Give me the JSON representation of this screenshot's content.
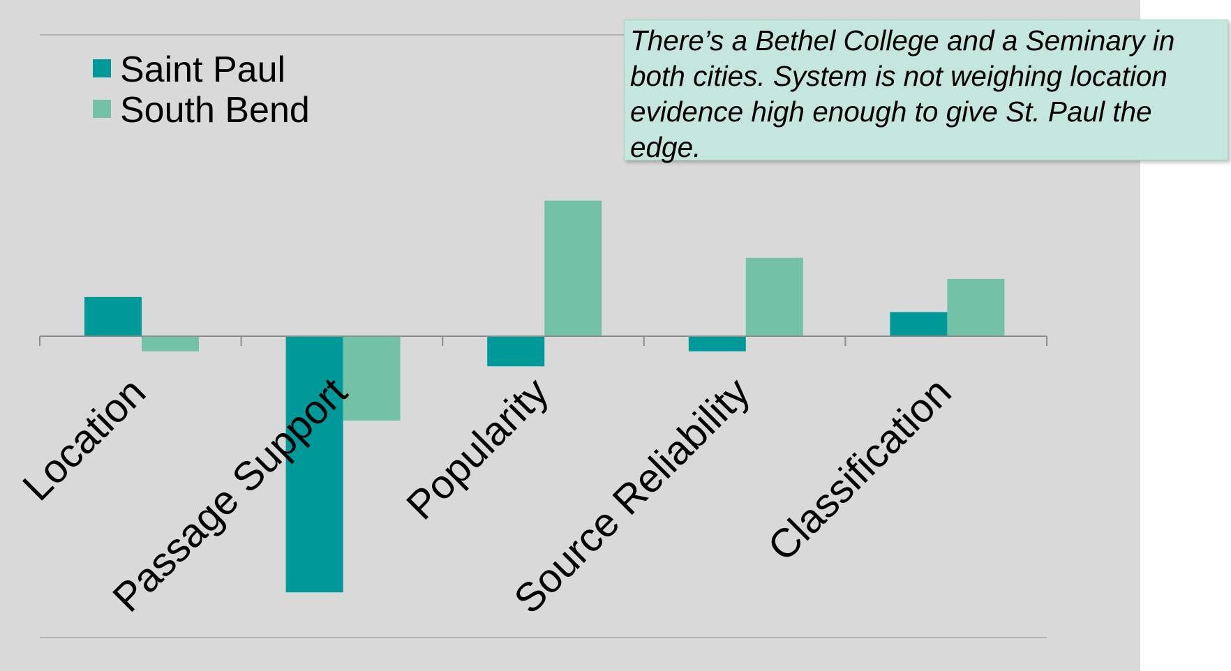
{
  "colors": {
    "background": "#d9d9d9",
    "gridline": "#a6a6a6",
    "saint_paul": "#009999",
    "south_bend": "#73c2a8",
    "note_bg": "#c5e6dd"
  },
  "note": {
    "text": "There’s a Bethel College and a Seminary in both cities. System is not weighing location evidence high enough to give St. Paul the edge."
  },
  "chart_data": {
    "type": "bar",
    "title": "",
    "xlabel": "",
    "ylabel": "",
    "categories": [
      "Location",
      "Passage Support",
      "Popularity",
      "Source Reliability",
      "Classification"
    ],
    "series": [
      {
        "name": "Saint Paul",
        "color": "#009999",
        "values": [
          0.13,
          -0.85,
          -0.1,
          -0.05,
          0.08
        ]
      },
      {
        "name": "South Bend",
        "color": "#73c2a8",
        "values": [
          -0.05,
          -0.28,
          0.45,
          0.26,
          0.19
        ]
      }
    ],
    "ylim": [
      -1.0,
      1.0
    ],
    "grid": true,
    "legend": "top-left"
  }
}
